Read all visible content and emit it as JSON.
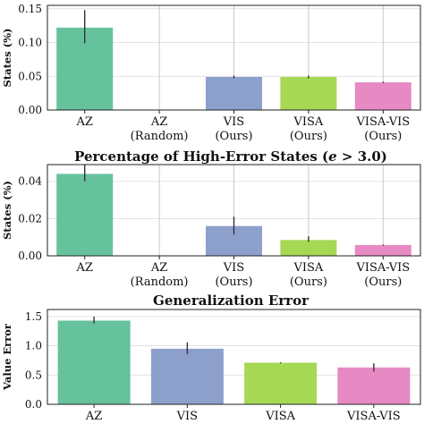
{
  "colors": {
    "AZ": "#66c29d",
    "AZ (Random)": "#f08c62",
    "VIS": "#8da0cb",
    "VISA": "#a6d854",
    "VISA-VIS": "#e78ac3"
  },
  "chart_data": [
    {
      "type": "bar",
      "title": "",
      "ylabel": "States (%)",
      "ylim": [
        0,
        0.155
      ],
      "yticks": [
        "0.00",
        "0.05",
        "0.10",
        "0.15"
      ],
      "ytick_values": [
        0,
        0.05,
        0.1,
        0.15
      ],
      "grid": "y",
      "categories": [
        [
          "AZ"
        ],
        [
          "AZ",
          "(Random)"
        ],
        [
          "VIS",
          "(Ours)"
        ],
        [
          "VISA",
          "(Ours)"
        ],
        [
          "VISA-VIS",
          "(Ours)"
        ]
      ],
      "series_keys": [
        "AZ",
        "AZ (Random)",
        "VIS",
        "VISA",
        "VISA-VIS"
      ],
      "values": [
        0.122,
        0.0,
        0.049,
        0.049,
        0.041
      ],
      "err_low": [
        0.099,
        0.0,
        0.047,
        0.047,
        0.04
      ],
      "err_high": [
        0.148,
        0.0,
        0.051,
        0.051,
        0.042
      ],
      "whisker_top": [
        0.148,
        0.155,
        0.155,
        0.155,
        0.155
      ]
    },
    {
      "type": "bar",
      "title": "Percentage of High-Error States (e > 3.0)",
      "ylabel": "States (%)",
      "ylim": [
        0,
        0.049
      ],
      "yticks": [
        "0.00",
        "0.02",
        "0.04"
      ],
      "ytick_values": [
        0,
        0.02,
        0.04
      ],
      "grid": "y",
      "categories": [
        [
          "AZ"
        ],
        [
          "AZ",
          "(Random)"
        ],
        [
          "VIS",
          "(Ours)"
        ],
        [
          "VISA",
          "(Ours)"
        ],
        [
          "VISA-VIS",
          "(Ours)"
        ]
      ],
      "series_keys": [
        "AZ",
        "AZ (Random)",
        "VIS",
        "VISA",
        "VISA-VIS"
      ],
      "values": [
        0.044,
        0.0,
        0.016,
        0.0085,
        0.0058
      ],
      "err_low": [
        0.04,
        0.0,
        0.0115,
        0.0075,
        0.0055
      ],
      "err_high": [
        0.049,
        0.0,
        0.021,
        0.0105,
        0.0061
      ],
      "whisker_top": [
        0.049,
        0.049,
        0.049,
        0.049,
        0.049
      ]
    },
    {
      "type": "bar",
      "title": "Generalization Error",
      "ylabel": "Value Error",
      "ylim": [
        0,
        1.62
      ],
      "yticks": [
        "0.0",
        "0.5",
        "1.0",
        "1.5"
      ],
      "ytick_values": [
        0,
        0.5,
        1.0,
        1.5
      ],
      "grid": "y",
      "categories": [
        [
          "AZ"
        ],
        [
          "VIS"
        ],
        [
          "VISA"
        ],
        [
          "VISA-VIS"
        ]
      ],
      "series_keys": [
        "AZ",
        "VIS",
        "VISA",
        "VISA-VIS"
      ],
      "values": [
        1.43,
        0.95,
        0.71,
        0.63
      ],
      "err_low": [
        1.38,
        0.86,
        0.7,
        0.56
      ],
      "err_high": [
        1.5,
        1.06,
        0.72,
        0.7
      ],
      "whisker_top": [
        1.5,
        1.06,
        0.72,
        0.7
      ]
    }
  ]
}
